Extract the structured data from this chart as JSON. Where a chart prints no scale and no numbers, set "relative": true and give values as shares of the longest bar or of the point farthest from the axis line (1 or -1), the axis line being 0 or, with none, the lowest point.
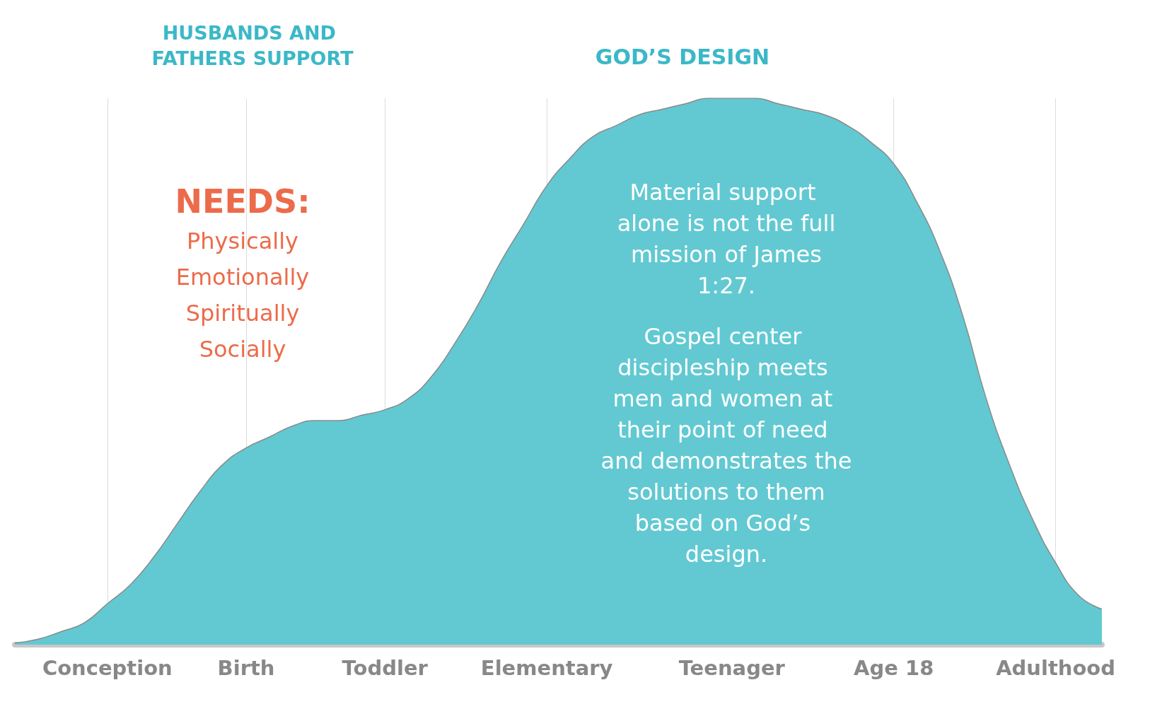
{
  "chart_data": {
    "type": "area",
    "relative": true,
    "grid": "x",
    "color": "#62c9d2",
    "categories": [
      null,
      null,
      null,
      null,
      "Conception",
      null,
      null,
      null,
      null,
      null,
      "Birth",
      null,
      null,
      null,
      null,
      null,
      "Toddler",
      null,
      null,
      null,
      null,
      null,
      null,
      "Elementary",
      null,
      null,
      null,
      null,
      null,
      null,
      null,
      "Teenager",
      null,
      null,
      null,
      null,
      null,
      null,
      "Age 18",
      null,
      null,
      null,
      null,
      null,
      null,
      "Adulthood",
      null,
      null
    ],
    "values": [
      0.003,
      0.01,
      0.024,
      0.04,
      0.075,
      0.11,
      0.16,
      0.22,
      0.28,
      0.33,
      0.36,
      0.38,
      0.4,
      0.41,
      0.41,
      0.42,
      0.43,
      0.45,
      0.49,
      0.55,
      0.62,
      0.7,
      0.77,
      0.84,
      0.89,
      0.93,
      0.95,
      0.97,
      0.98,
      0.99,
      1,
      1,
      1,
      0.99,
      0.98,
      0.97,
      0.95,
      0.92,
      0.88,
      0.81,
      0.72,
      0.6,
      0.45,
      0.33,
      0.23,
      0.15,
      0.09,
      0.065
    ],
    "annotations": [
      "HUSBANDS AND FATHERS SUPPORT",
      "GOD’S DESIGN",
      "NEEDS:",
      "Physically",
      "Emotionally",
      "Spiritually",
      "Socially",
      "Material support alone is not the full mission of James 1:27.",
      "Gospel center discipleship meets men and women at their point of need and demonstrates the solutions to them based on God’s design."
    ]
  }
}
